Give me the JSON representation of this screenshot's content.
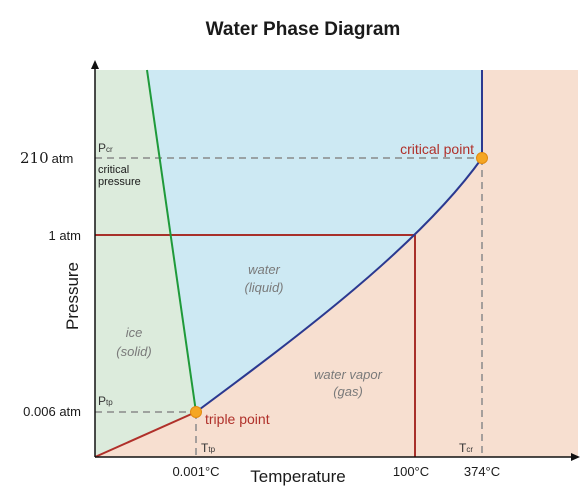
{
  "title": "Water Phase Diagram",
  "axes": {
    "x_label": "Temperature",
    "y_label": "Pressure"
  },
  "y_ticks": {
    "critical": "210",
    "critical_unit": "atm",
    "one_atm": "1 atm",
    "triple": "0.006 atm"
  },
  "x_ticks": {
    "triple": "0.001°C",
    "boiling": "100°C",
    "critical": "374°C"
  },
  "symbols": {
    "p_cr": "P",
    "p_cr_sub": "cr",
    "critical_pressure_line1": "critical",
    "critical_pressure_line2": "pressure",
    "p_tp": "P",
    "p_tp_sub": "tp",
    "t_tp": "T",
    "t_tp_sub": "tp",
    "t_cr": "T",
    "t_cr_sub": "cr"
  },
  "regions": {
    "liquid_line1": "water",
    "liquid_line2": "(liquid)",
    "solid_line1": "ice",
    "solid_line2": "(solid)",
    "gas_line1": "water vapor",
    "gas_line2": "(gas)"
  },
  "points": {
    "critical": "critical point",
    "triple": "triple point"
  },
  "colors": {
    "solid_region": "#dcebdc",
    "liquid_region": "#cde9f3",
    "gas_region": "#f7dfd0",
    "melting_curve": "#1f9a3a",
    "boiling_curve": "#2b3990",
    "sublimation_curve": "#b0302a",
    "reference_lines": "#a8302a",
    "dashed_lines": "#8a8a8a",
    "point_fill": "#f5a623"
  }
}
